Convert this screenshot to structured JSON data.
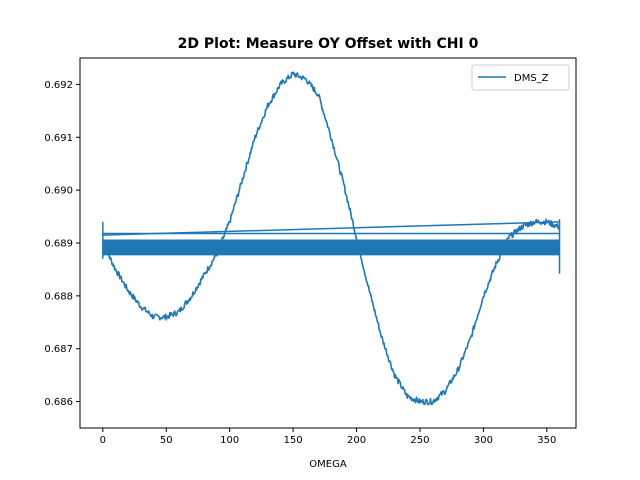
{
  "chart_data": {
    "type": "line",
    "title": "2D Plot: Measure OY Offset with CHI 0",
    "xlabel": "OMEGA",
    "ylabel": "",
    "xlim": [
      -18,
      373
    ],
    "ylim": [
      0.6855,
      0.6925
    ],
    "x_ticks": [
      0,
      50,
      100,
      150,
      200,
      250,
      300,
      350
    ],
    "y_ticks": [
      0.686,
      0.687,
      0.688,
      0.689,
      0.69,
      0.691,
      0.692
    ],
    "x_tick_labels": [
      "0",
      "50",
      "100",
      "150",
      "200",
      "250",
      "300",
      "350"
    ],
    "y_tick_labels": [
      "0.686",
      "0.687",
      "0.688",
      "0.689",
      "0.690",
      "0.691",
      "0.692"
    ],
    "grid": false,
    "legend_position": "top-right",
    "series": [
      {
        "name": "DMS_Z",
        "color": "#1f77b4",
        "sweep": {
          "x": [
            0,
            10,
            20,
            30,
            40,
            50,
            60,
            70,
            80,
            90,
            100,
            110,
            120,
            130,
            140,
            150,
            160,
            170,
            180,
            190,
            200,
            210,
            220,
            230,
            240,
            250,
            260,
            270,
            280,
            290,
            300,
            310,
            320,
            330,
            340,
            350,
            360
          ],
          "y": [
            0.689,
            0.6885,
            0.6881,
            0.6878,
            0.6876,
            0.6876,
            0.6877,
            0.688,
            0.6884,
            0.6888,
            0.6894,
            0.6902,
            0.691,
            0.6916,
            0.692,
            0.6922,
            0.6921,
            0.6918,
            0.691,
            0.6901,
            0.6891,
            0.6881,
            0.6872,
            0.6865,
            0.6861,
            0.686,
            0.686,
            0.6862,
            0.6866,
            0.6872,
            0.688,
            0.6886,
            0.6891,
            0.6893,
            0.6894,
            0.6894,
            0.6893
          ]
        },
        "return_band": {
          "x_start": 0,
          "x_end": 360,
          "y_min": 0.68878,
          "y_max": 0.68905,
          "extra_lines": [
            {
              "x": [
                0,
                360
              ],
              "y": [
                0.68915,
                0.6894
              ]
            },
            {
              "x": [
                0,
                360
              ],
              "y": [
                0.68918,
                0.68918
              ]
            },
            {
              "x": [
                0,
                360
              ],
              "y": [
                0.68905,
                0.689
              ]
            },
            {
              "x": [
                0,
                360
              ],
              "y": [
                0.68882,
                0.68882
              ]
            }
          ]
        }
      }
    ]
  }
}
